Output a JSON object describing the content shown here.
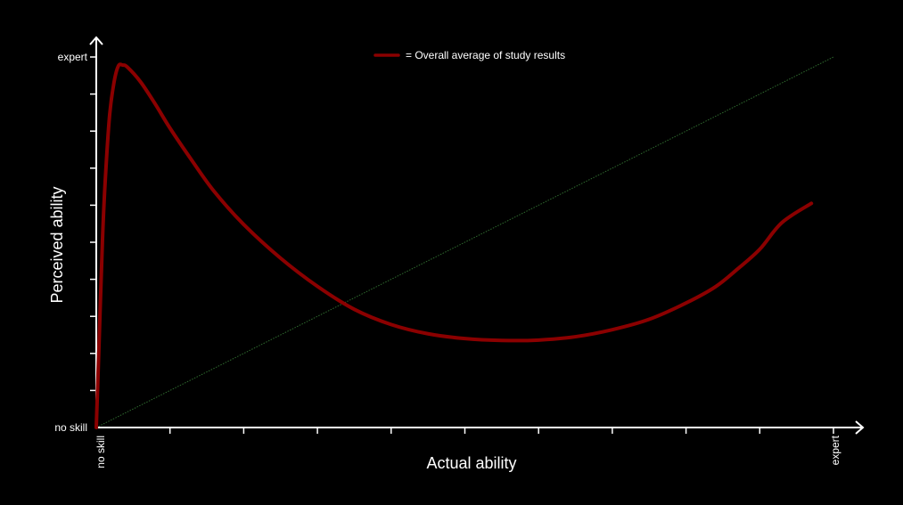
{
  "chart_data": {
    "type": "line",
    "xlabel": "Actual ability",
    "ylabel": "Perceived ability",
    "x_tick_labels": {
      "min": "no skill",
      "max": "expert"
    },
    "y_tick_labels": {
      "min": "no skill",
      "max": "expert"
    },
    "xlim": [
      0,
      1
    ],
    "ylim": [
      0,
      1
    ],
    "x_minor_ticks": 9,
    "y_minor_ticks": 9,
    "grid": false,
    "legend": {
      "placement": "top-center",
      "label": "= Overall average of study results"
    },
    "colors": {
      "background": "#000000",
      "curve": "#8b0000",
      "reference": "#2f6b2f",
      "axes": "#ffffff"
    },
    "series": [
      {
        "name": "Overall average of study results",
        "x": [
          0,
          0.0036,
          0.0084,
          0.012,
          0.018,
          0.024,
          0.03,
          0.036,
          0.042,
          0.06,
          0.08,
          0.1,
          0.13,
          0.16,
          0.2,
          0.25,
          0.3,
          0.35,
          0.4,
          0.45,
          0.5,
          0.55,
          0.6,
          0.65,
          0.7,
          0.75,
          0.8,
          0.84,
          0.87,
          0.9,
          0.93,
          0.97
        ],
        "y": [
          0,
          0.216,
          0.505,
          0.661,
          0.841,
          0.931,
          0.976,
          0.978,
          0.973,
          0.933,
          0.873,
          0.808,
          0.72,
          0.637,
          0.548,
          0.457,
          0.381,
          0.319,
          0.278,
          0.253,
          0.24,
          0.235,
          0.236,
          0.245,
          0.264,
          0.292,
          0.336,
          0.38,
          0.428,
          0.481,
          0.553,
          0.605
        ]
      },
      {
        "name": "",
        "x": [
          0,
          1
        ],
        "y": [
          0,
          1
        ]
      }
    ]
  }
}
